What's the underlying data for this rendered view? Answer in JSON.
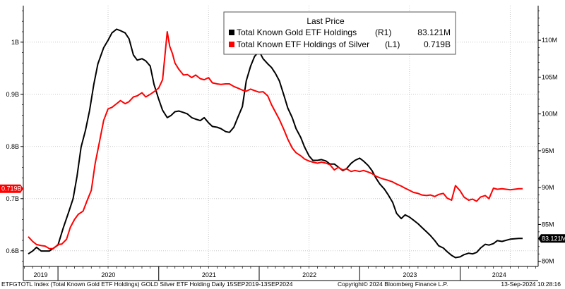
{
  "chart_data": {
    "type": "line",
    "title": "",
    "legend": {
      "title": "Last Price",
      "placement": "top-center"
    },
    "x_axis": {
      "years": [
        "2019",
        "2020",
        "2021",
        "2022",
        "2023",
        "2024"
      ]
    },
    "y_left": {
      "ticks": [
        "1B",
        "0.9B",
        "0.8B",
        "0.7B",
        "0.6B"
      ],
      "tick_values": [
        1.0,
        0.9,
        0.8,
        0.7,
        0.6
      ],
      "range": [
        0.57,
        1.07
      ],
      "unit": "B"
    },
    "y_right": {
      "ticks": [
        "110M",
        "105M",
        "100M",
        "95M",
        "90M",
        "85M",
        "80M"
      ],
      "tick_values": [
        110,
        105,
        100,
        95,
        90,
        85,
        80
      ],
      "range": [
        79.3,
        114.7
      ],
      "unit": "M"
    },
    "grid": true,
    "series": [
      {
        "name": "Total Known Gold ETF Holdings",
        "axis_label": "(R1)",
        "last_value": "83.121M",
        "color": "#000000",
        "points": [
          [
            "2019-09-15",
            81.0
          ],
          [
            "2019-10-01",
            81.4
          ],
          [
            "2019-10-15",
            81.9
          ],
          [
            "2019-11-01",
            81.4
          ],
          [
            "2019-12-01",
            81.4
          ],
          [
            "2020-01-01",
            82.2
          ],
          [
            "2020-01-20",
            84.5
          ],
          [
            "2020-02-10",
            86.8
          ],
          [
            "2020-02-25",
            88.5
          ],
          [
            "2020-03-10",
            91.5
          ],
          [
            "2020-03-25",
            95.5
          ],
          [
            "2020-04-10",
            97.8
          ],
          [
            "2020-04-25",
            100.5
          ],
          [
            "2020-05-10",
            104.0
          ],
          [
            "2020-05-25",
            106.8
          ],
          [
            "2020-06-15",
            109.0
          ],
          [
            "2020-07-01",
            110.0
          ],
          [
            "2020-07-15",
            111.0
          ],
          [
            "2020-08-01",
            111.5
          ],
          [
            "2020-08-15",
            111.3
          ],
          [
            "2020-09-01",
            111.0
          ],
          [
            "2020-09-15",
            110.2
          ],
          [
            "2020-10-01",
            108.0
          ],
          [
            "2020-10-15",
            107.3
          ],
          [
            "2020-11-01",
            107.5
          ],
          [
            "2020-11-15",
            107.2
          ],
          [
            "2020-12-01",
            106.5
          ],
          [
            "2020-12-15",
            104.0
          ],
          [
            "2021-01-01",
            102.0
          ],
          [
            "2021-01-15",
            100.5
          ],
          [
            "2021-02-01",
            99.5
          ],
          [
            "2021-02-15",
            99.8
          ],
          [
            "2021-03-01",
            100.3
          ],
          [
            "2021-03-15",
            100.4
          ],
          [
            "2021-04-01",
            100.2
          ],
          [
            "2021-04-15",
            100.0
          ],
          [
            "2021-05-01",
            99.5
          ],
          [
            "2021-05-15",
            99.3
          ],
          [
            "2021-06-01",
            99.1
          ],
          [
            "2021-06-15",
            99.5
          ],
          [
            "2021-07-01",
            98.8
          ],
          [
            "2021-07-15",
            98.3
          ],
          [
            "2021-08-01",
            98.2
          ],
          [
            "2021-08-15",
            98.0
          ],
          [
            "2021-09-01",
            97.6
          ],
          [
            "2021-09-15",
            97.5
          ],
          [
            "2021-10-01",
            98.2
          ],
          [
            "2021-10-15",
            99.5
          ],
          [
            "2021-11-01",
            101.0
          ],
          [
            "2021-11-15",
            104.5
          ],
          [
            "2021-12-01",
            106.5
          ],
          [
            "2021-12-15",
            107.8
          ],
          [
            "2022-01-01",
            108.5
          ],
          [
            "2022-01-15",
            107.5
          ],
          [
            "2022-02-01",
            106.8
          ],
          [
            "2022-02-15",
            106.3
          ],
          [
            "2022-03-01",
            105.5
          ],
          [
            "2022-03-15",
            104.5
          ],
          [
            "2022-04-01",
            102.5
          ],
          [
            "2022-04-15",
            100.8
          ],
          [
            "2022-05-01",
            99.5
          ],
          [
            "2022-05-15",
            98.0
          ],
          [
            "2022-06-01",
            96.8
          ],
          [
            "2022-06-15",
            95.5
          ],
          [
            "2022-07-01",
            94.3
          ],
          [
            "2022-07-15",
            93.7
          ],
          [
            "2022-08-01",
            93.7
          ],
          [
            "2022-08-15",
            93.8
          ],
          [
            "2022-09-01",
            93.6
          ],
          [
            "2022-09-15",
            93.2
          ],
          [
            "2022-10-01",
            93.2
          ],
          [
            "2022-10-15",
            92.8
          ],
          [
            "2022-11-01",
            92.3
          ],
          [
            "2022-11-15",
            92.6
          ],
          [
            "2022-12-01",
            93.3
          ],
          [
            "2022-12-15",
            93.7
          ],
          [
            "2023-01-01",
            94.0
          ],
          [
            "2023-01-15",
            93.6
          ],
          [
            "2023-02-01",
            93.0
          ],
          [
            "2023-02-15",
            92.3
          ],
          [
            "2023-03-01",
            91.3
          ],
          [
            "2023-03-15",
            90.5
          ],
          [
            "2023-04-01",
            89.8
          ],
          [
            "2023-04-15",
            89.0
          ],
          [
            "2023-05-01",
            88.0
          ],
          [
            "2023-05-15",
            86.5
          ],
          [
            "2023-06-01",
            85.8
          ],
          [
            "2023-06-15",
            86.3
          ],
          [
            "2023-07-01",
            86.0
          ],
          [
            "2023-07-15",
            85.6
          ],
          [
            "2023-08-01",
            85.1
          ],
          [
            "2023-08-15",
            84.6
          ],
          [
            "2023-09-01",
            84.0
          ],
          [
            "2023-09-15",
            83.5
          ],
          [
            "2023-10-01",
            82.8
          ],
          [
            "2023-10-15",
            82.1
          ],
          [
            "2023-11-01",
            81.8
          ],
          [
            "2023-11-15",
            81.3
          ],
          [
            "2023-12-01",
            80.8
          ],
          [
            "2023-12-15",
            80.5
          ],
          [
            "2024-01-01",
            80.6
          ],
          [
            "2024-01-15",
            80.9
          ],
          [
            "2024-02-01",
            81.1
          ],
          [
            "2024-02-15",
            81.0
          ],
          [
            "2024-03-01",
            81.2
          ],
          [
            "2024-03-15",
            81.8
          ],
          [
            "2024-04-01",
            82.3
          ],
          [
            "2024-04-15",
            82.2
          ],
          [
            "2024-05-01",
            82.4
          ],
          [
            "2024-05-15",
            82.8
          ],
          [
            "2024-06-01",
            82.7
          ],
          [
            "2024-07-01",
            83.0
          ],
          [
            "2024-08-01",
            83.1
          ],
          [
            "2024-08-15",
            83.1
          ]
        ]
      },
      {
        "name": "Total Known ETF Holdings of Silver",
        "axis_label": "(L1)",
        "last_value": "0.719B",
        "color": "#ff0000",
        "points": [
          [
            "2019-09-15",
            0.627
          ],
          [
            "2019-10-01",
            0.618
          ],
          [
            "2019-10-15",
            0.612
          ],
          [
            "2019-11-01",
            0.61
          ],
          [
            "2019-11-15",
            0.609
          ],
          [
            "2019-12-01",
            0.604
          ],
          [
            "2019-12-15",
            0.604
          ],
          [
            "2020-01-01",
            0.612
          ],
          [
            "2020-01-15",
            0.613
          ],
          [
            "2020-02-01",
            0.622
          ],
          [
            "2020-02-15",
            0.645
          ],
          [
            "2020-03-01",
            0.66
          ],
          [
            "2020-03-15",
            0.67
          ],
          [
            "2020-04-01",
            0.676
          ],
          [
            "2020-04-15",
            0.695
          ],
          [
            "2020-05-01",
            0.716
          ],
          [
            "2020-05-15",
            0.767
          ],
          [
            "2020-06-01",
            0.812
          ],
          [
            "2020-06-15",
            0.85
          ],
          [
            "2020-07-01",
            0.872
          ],
          [
            "2020-07-15",
            0.875
          ],
          [
            "2020-08-01",
            0.882
          ],
          [
            "2020-08-15",
            0.888
          ],
          [
            "2020-09-01",
            0.882
          ],
          [
            "2020-09-15",
            0.886
          ],
          [
            "2020-10-01",
            0.895
          ],
          [
            "2020-10-15",
            0.897
          ],
          [
            "2020-11-01",
            0.903
          ],
          [
            "2020-11-15",
            0.895
          ],
          [
            "2020-12-01",
            0.9
          ],
          [
            "2020-12-15",
            0.905
          ],
          [
            "2021-01-01",
            0.912
          ],
          [
            "2021-01-15",
            0.928
          ],
          [
            "2021-02-01",
            1.02
          ],
          [
            "2021-02-10",
            0.992
          ],
          [
            "2021-02-20",
            0.978
          ],
          [
            "2021-03-01",
            0.96
          ],
          [
            "2021-03-15",
            0.948
          ],
          [
            "2021-04-01",
            0.937
          ],
          [
            "2021-04-15",
            0.938
          ],
          [
            "2021-05-01",
            0.932
          ],
          [
            "2021-05-15",
            0.937
          ],
          [
            "2021-06-01",
            0.93
          ],
          [
            "2021-06-15",
            0.928
          ],
          [
            "2021-07-01",
            0.932
          ],
          [
            "2021-07-15",
            0.922
          ],
          [
            "2021-08-01",
            0.92
          ],
          [
            "2021-08-15",
            0.919
          ],
          [
            "2021-09-01",
            0.92
          ],
          [
            "2021-09-15",
            0.92
          ],
          [
            "2021-10-01",
            0.915
          ],
          [
            "2021-10-15",
            0.912
          ],
          [
            "2021-11-01",
            0.908
          ],
          [
            "2021-11-15",
            0.906
          ],
          [
            "2021-12-01",
            0.91
          ],
          [
            "2021-12-15",
            0.907
          ],
          [
            "2022-01-01",
            0.904
          ],
          [
            "2022-01-15",
            0.905
          ],
          [
            "2022-02-01",
            0.897
          ],
          [
            "2022-02-15",
            0.88
          ],
          [
            "2022-03-01",
            0.866
          ],
          [
            "2022-03-15",
            0.852
          ],
          [
            "2022-04-01",
            0.832
          ],
          [
            "2022-04-15",
            0.814
          ],
          [
            "2022-05-01",
            0.797
          ],
          [
            "2022-05-15",
            0.788
          ],
          [
            "2022-06-01",
            0.782
          ],
          [
            "2022-06-15",
            0.776
          ],
          [
            "2022-07-01",
            0.772
          ],
          [
            "2022-07-15",
            0.77
          ],
          [
            "2022-08-01",
            0.768
          ],
          [
            "2022-08-15",
            0.77
          ],
          [
            "2022-09-01",
            0.768
          ],
          [
            "2022-09-15",
            0.765
          ],
          [
            "2022-10-01",
            0.755
          ],
          [
            "2022-10-15",
            0.76
          ],
          [
            "2022-11-01",
            0.755
          ],
          [
            "2022-11-15",
            0.757
          ],
          [
            "2022-12-01",
            0.752
          ],
          [
            "2022-12-15",
            0.754
          ],
          [
            "2023-01-01",
            0.752
          ],
          [
            "2023-01-15",
            0.754
          ],
          [
            "2023-02-01",
            0.751
          ],
          [
            "2023-02-15",
            0.748
          ],
          [
            "2023-03-01",
            0.743
          ],
          [
            "2023-03-15",
            0.74
          ],
          [
            "2023-04-01",
            0.737
          ],
          [
            "2023-04-15",
            0.735
          ],
          [
            "2023-05-01",
            0.732
          ],
          [
            "2023-05-15",
            0.728
          ],
          [
            "2023-06-01",
            0.724
          ],
          [
            "2023-06-15",
            0.72
          ],
          [
            "2023-07-01",
            0.716
          ],
          [
            "2023-07-15",
            0.712
          ],
          [
            "2023-08-01",
            0.71
          ],
          [
            "2023-08-15",
            0.707
          ],
          [
            "2023-09-01",
            0.706
          ],
          [
            "2023-09-15",
            0.707
          ],
          [
            "2023-10-01",
            0.704
          ],
          [
            "2023-10-15",
            0.708
          ],
          [
            "2023-11-01",
            0.71
          ],
          [
            "2023-11-15",
            0.701
          ],
          [
            "2023-12-01",
            0.697
          ],
          [
            "2023-12-15",
            0.725
          ],
          [
            "2024-01-01",
            0.715
          ],
          [
            "2024-01-15",
            0.703
          ],
          [
            "2024-02-01",
            0.697
          ],
          [
            "2024-02-15",
            0.699
          ],
          [
            "2024-03-01",
            0.695
          ],
          [
            "2024-03-15",
            0.703
          ],
          [
            "2024-04-01",
            0.706
          ],
          [
            "2024-04-15",
            0.7
          ],
          [
            "2024-05-01",
            0.72
          ],
          [
            "2024-05-15",
            0.718
          ],
          [
            "2024-06-01",
            0.719
          ],
          [
            "2024-07-01",
            0.717
          ],
          [
            "2024-08-01",
            0.719
          ],
          [
            "2024-08-15",
            0.719
          ]
        ]
      }
    ],
    "value_tags": {
      "left": "0.719B",
      "right": "83.121M"
    }
  },
  "footer": {
    "left": "ETFGTOTL Index (Total Known Gold ETF Holdings) GOLD Silver ETF Holding  Daily 15SEP2019-13SEP2024",
    "center": "Copyright© 2024 Bloomberg Finance L.P.",
    "right": "13-Sep-2024 10:28:16"
  }
}
